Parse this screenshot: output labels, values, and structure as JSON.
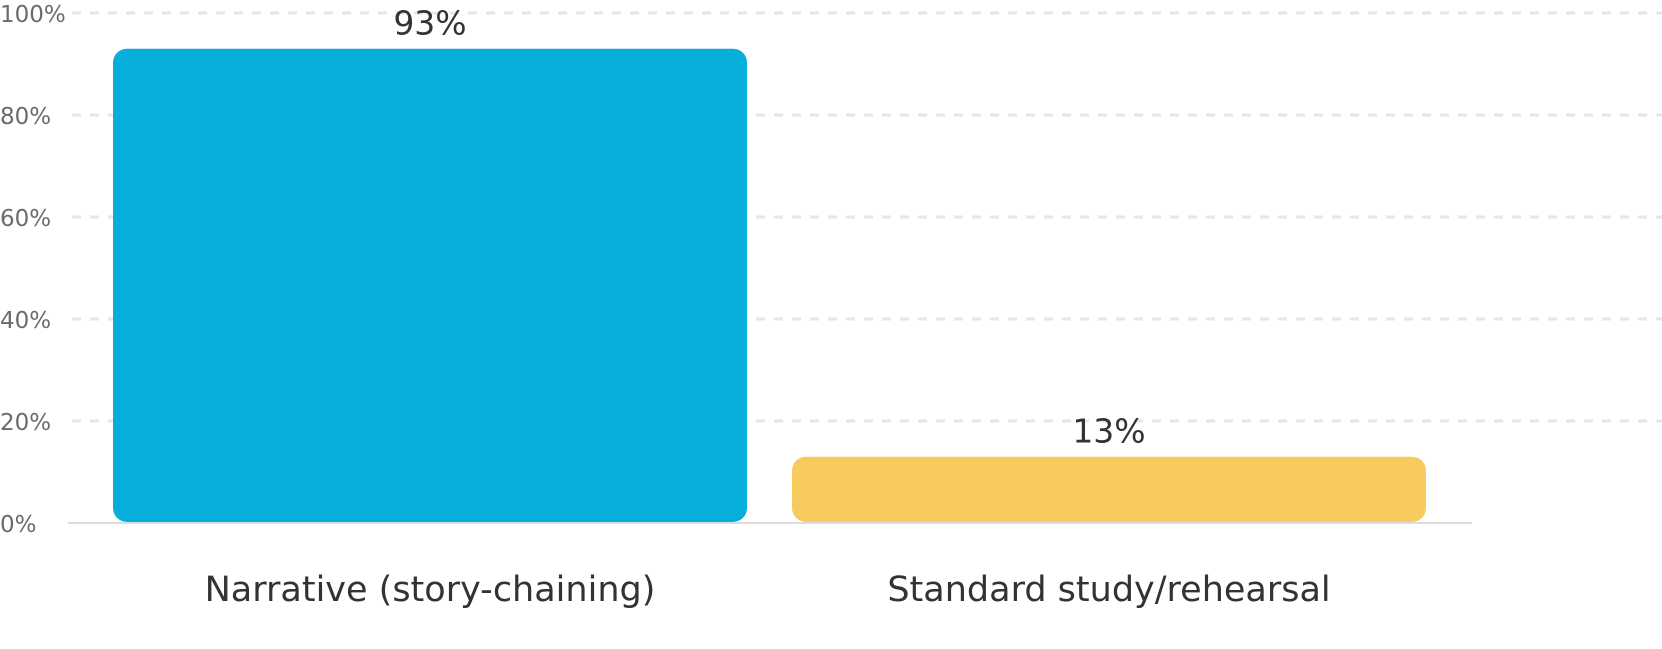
{
  "chart_data": {
    "type": "bar",
    "categories": [
      "Narrative (story-chaining)",
      "Standard study/rehearsal"
    ],
    "values": [
      93,
      13
    ],
    "value_labels": [
      "93%",
      "13%"
    ],
    "colors": [
      "#06aed9",
      "#f7cb5e"
    ],
    "ylim": [
      0,
      100
    ],
    "yticks": [
      "0%",
      "20%",
      "40%",
      "60%",
      "80%",
      "100%"
    ],
    "grid": true,
    "title": "",
    "xlabel": "",
    "ylabel": ""
  }
}
